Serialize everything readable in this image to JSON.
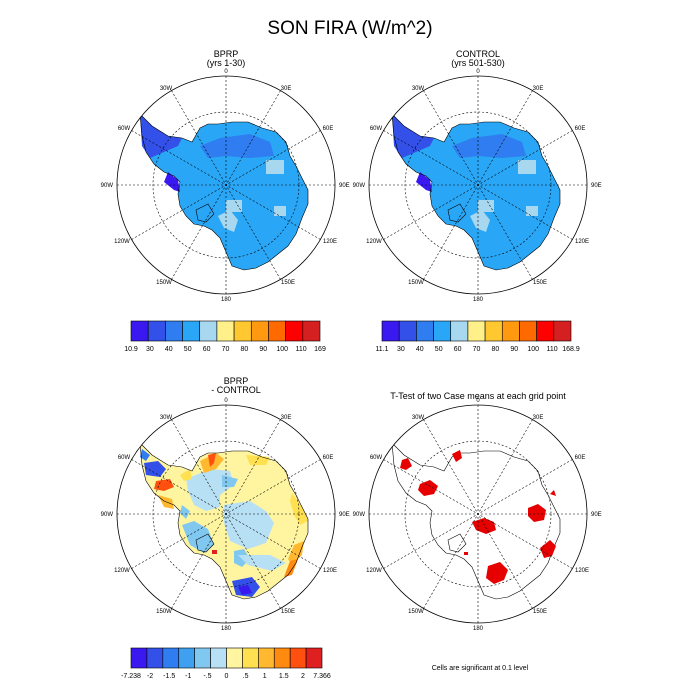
{
  "figure": {
    "title": "SON FIRA (W/m^2)"
  },
  "panels": [
    {
      "id": "bprp",
      "title_line1": "BPRP",
      "title_line2": "(yrs 1-30)",
      "colorbar": {
        "labels": [
          "10.9",
          "30",
          "40",
          "50",
          "60",
          "70",
          "80",
          "90",
          "100",
          "110",
          "169"
        ],
        "colors": [
          "#3a19f0",
          "#3350e8",
          "#2f7df0",
          "#29a6f5",
          "#a8d8f0",
          "#fff08a",
          "#ffc830",
          "#ff9a10",
          "#ff6a00",
          "#ff0000",
          "#d42020"
        ]
      }
    },
    {
      "id": "control",
      "title_line1": "CONTROL",
      "title_line2": "(yrs 501-530)",
      "colorbar": {
        "labels": [
          "11.1",
          "30",
          "40",
          "50",
          "60",
          "70",
          "80",
          "90",
          "100",
          "110",
          "168.9"
        ],
        "colors": [
          "#3a19f0",
          "#3350e8",
          "#2f7df0",
          "#29a6f5",
          "#a8d8f0",
          "#fff08a",
          "#ffc830",
          "#ff9a10",
          "#ff6a00",
          "#ff0000",
          "#d42020"
        ]
      }
    },
    {
      "id": "diff",
      "title_line1": "BPRP",
      "title_line2": "- CONTROL",
      "colorbar": {
        "labels": [
          "-7.238",
          "-2",
          "-1.5",
          "-1",
          "-.5",
          "0",
          ".5",
          "1",
          "1.5",
          "2",
          "7.366"
        ],
        "colors": [
          "#3a19f0",
          "#3350e8",
          "#2f7df0",
          "#3fa0f0",
          "#80c8f0",
          "#b8e0f5",
          "#fff5a0",
          "#ffe050",
          "#ffb830",
          "#ff8a10",
          "#ff5010",
          "#e02020"
        ]
      }
    },
    {
      "id": "ttest",
      "title_line1": "T-Test of two Case means at each grid point",
      "footnote": "Cells are significant at 0.1 level"
    }
  ],
  "map_labels": {
    "top": "0",
    "bottom": "180",
    "left": "90W",
    "right": "90E",
    "upper_left_1": "30W",
    "upper_left_2": "60W",
    "upper_right_1": "30E",
    "upper_right_2": "60E",
    "lower_left_1": "120W",
    "lower_left_2": "150W",
    "lower_right_1": "120E",
    "lower_right_2": "150E"
  },
  "chart_data": [
    {
      "type": "heatmap",
      "title": "BPRP (yrs 1-30)",
      "projection": "south polar stereographic",
      "field": "SON FIRA (W/m^2)",
      "range": [
        10.9,
        169
      ],
      "levels": [
        30,
        40,
        50,
        60,
        70,
        80,
        90,
        100,
        110
      ]
    },
    {
      "type": "heatmap",
      "title": "CONTROL (yrs 501-530)",
      "projection": "south polar stereographic",
      "field": "SON FIRA (W/m^2)",
      "range": [
        11.1,
        168.9
      ],
      "levels": [
        30,
        40,
        50,
        60,
        70,
        80,
        90,
        100,
        110
      ]
    },
    {
      "type": "heatmap",
      "title": "BPRP - CONTROL",
      "projection": "south polar stereographic",
      "range": [
        -7.238,
        7.366
      ],
      "levels": [
        -2,
        -1.5,
        -1,
        -0.5,
        0,
        0.5,
        1,
        1.5,
        2
      ]
    },
    {
      "type": "heatmap",
      "title": "T-Test of two Case means at each grid point",
      "projection": "south polar stereographic",
      "note": "Cells are significant at 0.1 level"
    }
  ]
}
